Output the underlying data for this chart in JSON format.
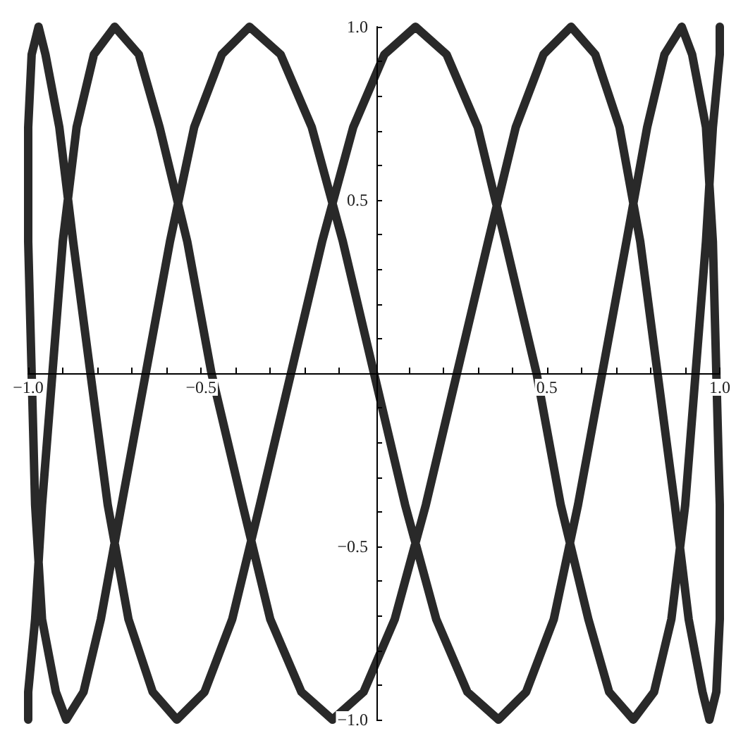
{
  "chart_data": {
    "type": "line",
    "series": [
      {
        "color": "#1e1e1e",
        "x": [
          1,
          1,
          0.98,
          0.96,
          0.93,
          0.9,
          0.86,
          0.81,
          0.75,
          0.68,
          0.62,
          0.54,
          0.47,
          0.38,
          0.3,
          0.21,
          0.12,
          0.03,
          -0.06,
          -0.15,
          -0.24,
          -0.33,
          -0.41,
          -0.49,
          -0.57,
          -0.64,
          -0.71,
          -0.77,
          -0.82,
          -0.87,
          -0.91,
          -0.95,
          -0.97,
          -0.99,
          -1,
          -1,
          -0.99,
          -0.98,
          -0.96,
          -0.92,
          -0.89,
          -0.84,
          -0.79,
          -0.73,
          -0.66,
          -0.59,
          -0.52,
          -0.44,
          -0.36,
          -0.27,
          -0.18,
          -0.09,
          0,
          0.09,
          0.18,
          0.27,
          0.36,
          0.44,
          0.52,
          0.59,
          0.66,
          0.73,
          0.79,
          0.84,
          0.89,
          0.92,
          0.96,
          0.98,
          0.99,
          1,
          1,
          0.99,
          0.97,
          0.95,
          0.91,
          0.87,
          0.82,
          0.77,
          0.71,
          0.64,
          0.57,
          0.49,
          0.41,
          0.33,
          0.24,
          0.15,
          0.06,
          -0.03,
          -0.12,
          -0.21,
          -0.3,
          -0.38,
          -0.47,
          -0.54,
          -0.62,
          -0.68,
          -0.75,
          -0.81,
          -0.86,
          -0.9,
          -0.93,
          -0.96,
          -0.98,
          -1,
          -1
        ],
        "values": [
          1,
          0.92,
          0.71,
          0.38,
          0,
          -0.38,
          -0.71,
          -0.92,
          -1,
          -0.92,
          -0.71,
          -0.38,
          0,
          0.38,
          0.71,
          0.92,
          1,
          0.92,
          0.71,
          0.38,
          0,
          -0.38,
          -0.71,
          -0.92,
          -1,
          -0.92,
          -0.71,
          -0.38,
          0,
          0.38,
          0.71,
          0.92,
          1,
          0.92,
          0.71,
          0.38,
          0,
          -0.38,
          -0.71,
          -0.92,
          -1,
          -0.92,
          -0.71,
          -0.38,
          0,
          0.38,
          0.71,
          0.92,
          1,
          0.92,
          0.71,
          0.38,
          0,
          -0.38,
          -0.71,
          -0.92,
          -1,
          -0.92,
          -0.71,
          -0.38,
          0,
          0.38,
          0.71,
          0.92,
          1,
          0.92,
          0.71,
          0.38,
          0,
          -0.38,
          -0.71,
          -0.92,
          -1,
          -0.92,
          -0.71,
          -0.38,
          0,
          0.38,
          0.71,
          0.92,
          1,
          0.92,
          0.71,
          0.38,
          0,
          -0.38,
          -0.71,
          -0.92,
          -1,
          -0.92,
          -0.71,
          -0.38,
          0,
          0.38,
          0.71,
          0.92,
          1,
          0.92,
          0.71,
          0.38,
          0,
          -0.38,
          -0.71,
          -0.92,
          -1
        ]
      }
    ],
    "xlim": [
      -1,
      1
    ],
    "ylim": [
      -1,
      1
    ],
    "xticks": [
      {
        "value": -1,
        "label": "−1.0"
      },
      {
        "value": -0.9,
        "label": null
      },
      {
        "value": -0.8,
        "label": null
      },
      {
        "value": -0.7,
        "label": null
      },
      {
        "value": -0.6,
        "label": null
      },
      {
        "value": -0.5,
        "label": "−0.5"
      },
      {
        "value": -0.4,
        "label": null
      },
      {
        "value": -0.3,
        "label": null
      },
      {
        "value": -0.2,
        "label": null
      },
      {
        "value": -0.1,
        "label": null
      },
      {
        "value": 0.1,
        "label": null
      },
      {
        "value": 0.2,
        "label": null
      },
      {
        "value": 0.3,
        "label": null
      },
      {
        "value": 0.4,
        "label": null
      },
      {
        "value": 0.5,
        "label": "0.5"
      },
      {
        "value": 0.6,
        "label": null
      },
      {
        "value": 0.7,
        "label": null
      },
      {
        "value": 0.8,
        "label": null
      },
      {
        "value": 0.9,
        "label": null
      },
      {
        "value": 1,
        "label": "1.0"
      }
    ],
    "yticks": [
      {
        "value": -1,
        "label": "−1.0"
      },
      {
        "value": -0.9,
        "label": null
      },
      {
        "value": -0.8,
        "label": null
      },
      {
        "value": -0.7,
        "label": null
      },
      {
        "value": -0.6,
        "label": null
      },
      {
        "value": -0.5,
        "label": "−0.5"
      },
      {
        "value": -0.4,
        "label": null
      },
      {
        "value": -0.3,
        "label": null
      },
      {
        "value": -0.2,
        "label": null
      },
      {
        "value": -0.1,
        "label": null
      },
      {
        "value": 0.1,
        "label": null
      },
      {
        "value": 0.2,
        "label": null
      },
      {
        "value": 0.3,
        "label": null
      },
      {
        "value": 0.4,
        "label": null
      },
      {
        "value": 0.5,
        "label": "0.5"
      },
      {
        "value": 0.6,
        "label": null
      },
      {
        "value": 0.7,
        "label": null
      },
      {
        "value": 0.8,
        "label": null
      },
      {
        "value": 0.9,
        "label": null
      },
      {
        "value": 1,
        "label": "1.0"
      }
    ],
    "line_style": "solid"
  }
}
